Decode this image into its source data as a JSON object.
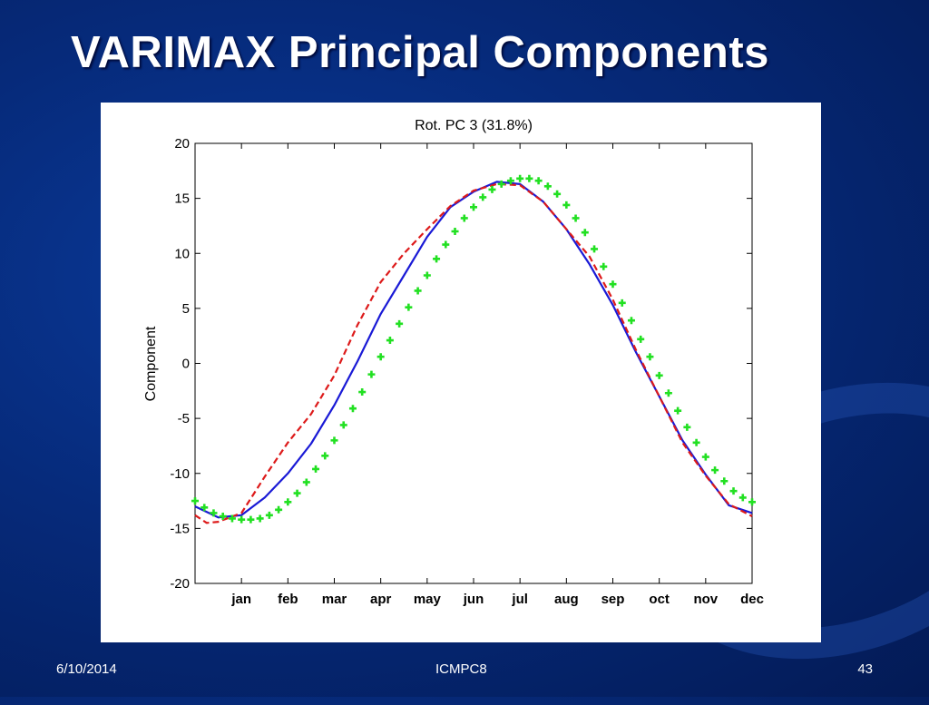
{
  "slide": {
    "title": "VARIMAX Principal Components",
    "footer_date": "6/10/2014",
    "footer_center": "ICMPC8",
    "page_number": "43"
  },
  "colors": {
    "series_solid": "#1a1ad6",
    "series_dashed": "#dd1a1a",
    "series_markers": "#22e022"
  },
  "chart_data": {
    "type": "line",
    "title": "Rot. PC 3 (31.8%)",
    "xlabel": "",
    "ylabel": "Component",
    "ylim": [
      -20,
      20
    ],
    "xlim": [
      0,
      12
    ],
    "yticks": [
      -20,
      -15,
      -10,
      -5,
      0,
      5,
      10,
      15,
      20
    ],
    "categories": [
      "jan",
      "feb",
      "mar",
      "apr",
      "may",
      "jun",
      "jul",
      "aug",
      "sep",
      "oct",
      "nov",
      "dec"
    ],
    "category_positions": [
      1,
      2,
      3,
      4,
      5,
      6,
      7,
      8,
      9,
      10,
      11,
      12
    ],
    "grid": false,
    "series": [
      {
        "style": "solid",
        "x": [
          0,
          0.5,
          1,
          1.5,
          2,
          2.5,
          3,
          3.5,
          4,
          4.5,
          5,
          5.5,
          6,
          6.5,
          7,
          7.5,
          8,
          8.5,
          9,
          9.5,
          10,
          10.5,
          11,
          11.5,
          12
        ],
        "y": [
          -13.0,
          -14.0,
          -13.8,
          -12.2,
          -10.0,
          -7.3,
          -3.8,
          0.2,
          4.5,
          8.0,
          11.5,
          14.2,
          15.6,
          16.5,
          16.3,
          14.7,
          12.2,
          9.0,
          5.3,
          1.0,
          -3.0,
          -7.0,
          -10.1,
          -12.9,
          -13.6
        ]
      },
      {
        "style": "dashed",
        "x": [
          0,
          0.25,
          0.5,
          1,
          1.5,
          2,
          2.5,
          3,
          3.5,
          4,
          4.5,
          5,
          5.5,
          6,
          6.5,
          7,
          7.5,
          8,
          8.5,
          9,
          9.5,
          10,
          10.5,
          11,
          11.5,
          12
        ],
        "y": [
          -13.8,
          -14.5,
          -14.4,
          -13.6,
          -10.3,
          -7.2,
          -4.6,
          -1.1,
          3.5,
          7.4,
          10.0,
          12.2,
          14.3,
          15.7,
          16.3,
          16.2,
          14.7,
          12.2,
          9.7,
          5.8,
          1.2,
          -3.0,
          -7.2,
          -10.2,
          -12.8,
          -13.9
        ]
      },
      {
        "style": "markers",
        "x": [
          0,
          0.2,
          0.4,
          0.6,
          0.8,
          1,
          1.2,
          1.4,
          1.6,
          1.8,
          2,
          2.2,
          2.4,
          2.6,
          2.8,
          3,
          3.2,
          3.4,
          3.6,
          3.8,
          4,
          4.2,
          4.4,
          4.6,
          4.8,
          5,
          5.2,
          5.4,
          5.6,
          5.8,
          6,
          6.2,
          6.4,
          6.6,
          6.8,
          7,
          7.2,
          7.4,
          7.6,
          7.8,
          8,
          8.2,
          8.4,
          8.6,
          8.8,
          9,
          9.2,
          9.4,
          9.6,
          9.8,
          10,
          10.2,
          10.4,
          10.6,
          10.8,
          11,
          11.2,
          11.4,
          11.6,
          11.8,
          12
        ],
        "y": [
          -12.5,
          -13.1,
          -13.6,
          -13.9,
          -14.1,
          -14.2,
          -14.2,
          -14.1,
          -13.8,
          -13.3,
          -12.6,
          -11.8,
          -10.8,
          -9.6,
          -8.4,
          -7.0,
          -5.6,
          -4.1,
          -2.6,
          -1.0,
          0.6,
          2.1,
          3.6,
          5.1,
          6.6,
          8.0,
          9.5,
          10.8,
          12.0,
          13.2,
          14.2,
          15.1,
          15.8,
          16.3,
          16.6,
          16.8,
          16.8,
          16.6,
          16.1,
          15.4,
          14.4,
          13.2,
          11.9,
          10.4,
          8.8,
          7.2,
          5.5,
          3.9,
          2.2,
          0.6,
          -1.1,
          -2.7,
          -4.3,
          -5.8,
          -7.2,
          -8.5,
          -9.7,
          -10.7,
          -11.6,
          -12.2,
          -12.6
        ]
      }
    ]
  }
}
